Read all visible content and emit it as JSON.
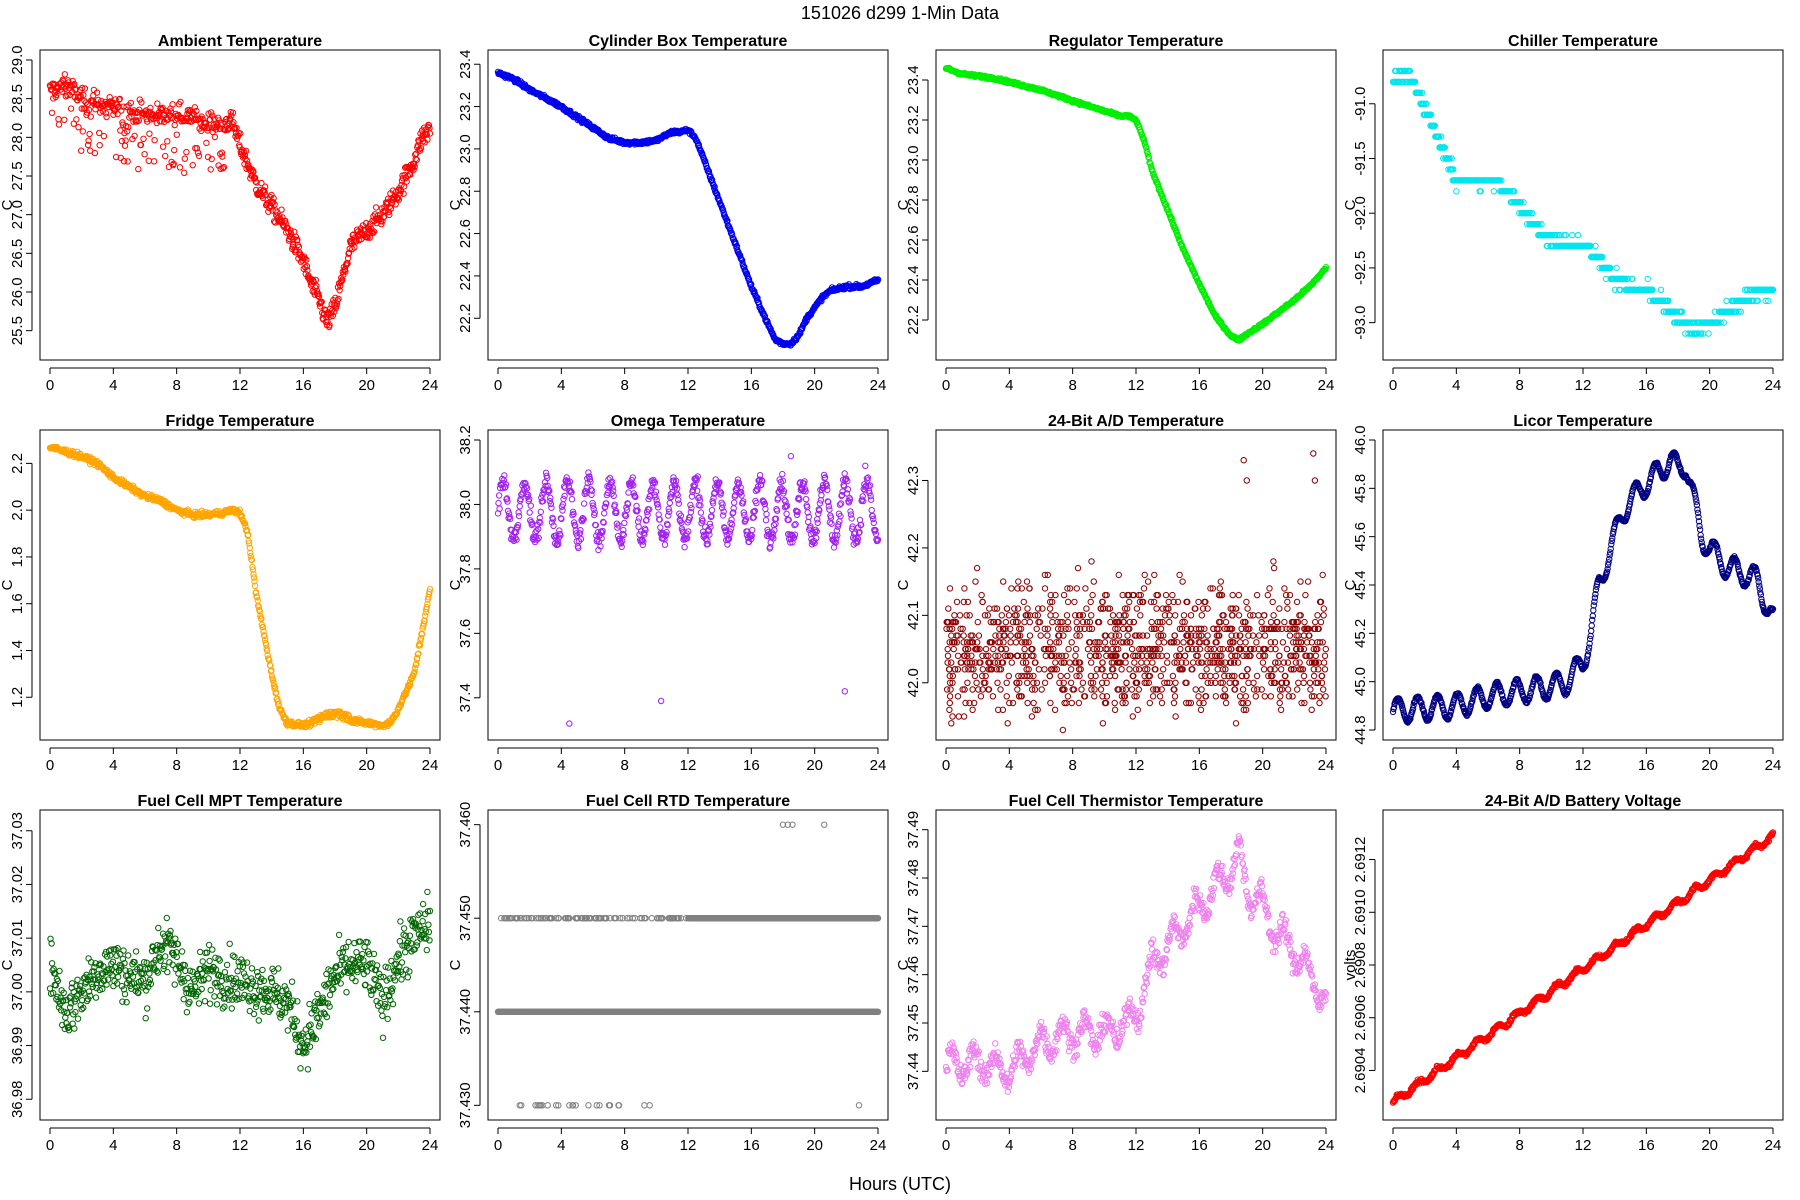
{
  "figure": {
    "title": "151026   d299   1-Min Data",
    "xlabel": "Hours (UTC)"
  },
  "chart_data": [
    {
      "type": "scatter",
      "title": "Ambient Temperature",
      "ylabel": "C",
      "color": "#ff0000",
      "xlim": [
        0,
        24
      ],
      "ylim": [
        25.25,
        29.0
      ],
      "xticks": [
        0,
        4,
        8,
        12,
        16,
        20,
        24
      ],
      "yticks": [
        "25.5",
        "26.0",
        "26.5",
        "27.0",
        "27.5",
        "28.0",
        "28.5",
        "29.0"
      ],
      "pattern": {
        "kind": "anchors",
        "x": [
          0,
          1,
          2,
          4,
          6,
          8,
          10,
          11.5,
          12,
          13,
          14,
          15,
          16,
          16.5,
          17,
          17.5,
          18,
          18.5,
          19,
          19.5,
          20,
          21,
          22,
          23,
          23.5,
          24
        ],
        "y": [
          28.6,
          28.7,
          28.5,
          28.4,
          28.3,
          28.3,
          28.2,
          28.2,
          27.9,
          27.4,
          27.1,
          26.8,
          26.4,
          26.1,
          25.9,
          25.6,
          25.8,
          26.2,
          26.6,
          26.7,
          26.8,
          27.0,
          27.3,
          27.7,
          28.0,
          28.1
        ],
        "noise": 0.12,
        "low_tail": 0.7,
        "low_tail_until": 11
      }
    },
    {
      "type": "scatter",
      "title": "Cylinder Box Temperature",
      "ylabel": "C",
      "color": "#0000ee",
      "xlim": [
        0,
        24
      ],
      "ylim": [
        22.05,
        23.42
      ],
      "xticks": [
        0,
        4,
        8,
        12,
        16,
        20,
        24
      ],
      "yticks": [
        "22.2",
        "22.4",
        "22.6",
        "22.8",
        "23.0",
        "23.2",
        "23.4"
      ],
      "pattern": {
        "kind": "anchors",
        "x": [
          0,
          1,
          2,
          4,
          6,
          7,
          8,
          9,
          10,
          11,
          11.5,
          12,
          12.5,
          13,
          14,
          15,
          16,
          17,
          17.5,
          18,
          18.5,
          19,
          19.5,
          20,
          20.5,
          21,
          22,
          23,
          24
        ],
        "y": [
          23.36,
          23.33,
          23.28,
          23.2,
          23.1,
          23.05,
          23.03,
          23.03,
          23.04,
          23.08,
          23.08,
          23.09,
          23.05,
          22.95,
          22.75,
          22.55,
          22.35,
          22.18,
          22.1,
          22.08,
          22.08,
          22.12,
          22.2,
          22.25,
          22.3,
          22.33,
          22.35,
          22.35,
          22.38
        ],
        "noise": 0.008
      }
    },
    {
      "type": "scatter",
      "title": "Regulator Temperature",
      "ylabel": "C",
      "color": "#00ee00",
      "xlim": [
        0,
        24
      ],
      "ylim": [
        22.05,
        23.5
      ],
      "xticks": [
        0,
        4,
        8,
        12,
        16,
        20,
        24
      ],
      "yticks": [
        "22.2",
        "22.4",
        "22.6",
        "22.8",
        "23.0",
        "23.2",
        "23.4"
      ],
      "pattern": {
        "kind": "anchors",
        "x": [
          0,
          1,
          3,
          6,
          9,
          11,
          11.5,
          12,
          12.5,
          13,
          14,
          15,
          16,
          17,
          18,
          18.5,
          19,
          20,
          21,
          22,
          23,
          24
        ],
        "y": [
          23.46,
          23.43,
          23.41,
          23.35,
          23.27,
          23.22,
          23.22,
          23.2,
          23.1,
          22.95,
          22.75,
          22.55,
          22.38,
          22.22,
          22.12,
          22.1,
          22.13,
          22.18,
          22.24,
          22.3,
          22.37,
          22.46
        ],
        "noise": 0.006
      }
    },
    {
      "type": "scatter",
      "title": "Chiller Temperature",
      "ylabel": "C",
      "color": "#00e5ee",
      "xlim": [
        0,
        24
      ],
      "ylim": [
        -93.25,
        -90.6
      ],
      "xticks": [
        0,
        4,
        8,
        12,
        16,
        20,
        24
      ],
      "yticks": [
        "-93.0",
        "-92.5",
        "-92.0",
        "-91.5",
        "-91.0"
      ],
      "pattern": {
        "kind": "anchors",
        "x": [
          0,
          1,
          2,
          3,
          4,
          5,
          6,
          7,
          8,
          9,
          10,
          12,
          13,
          14,
          16,
          17,
          18,
          19,
          20,
          21,
          22,
          23,
          24
        ],
        "y": [
          -90.78,
          -90.72,
          -91.05,
          -91.35,
          -91.72,
          -91.72,
          -91.7,
          -91.75,
          -91.92,
          -92.12,
          -92.25,
          -92.3,
          -92.4,
          -92.62,
          -92.7,
          -92.8,
          -92.95,
          -93.05,
          -93.0,
          -92.9,
          -92.8,
          -92.72,
          -92.7
        ],
        "noise": 0.05,
        "quantum": 0.1
      }
    },
    {
      "type": "scatter",
      "title": "Fridge Temperature",
      "ylabel": "C",
      "color": "#ffa500",
      "xlim": [
        0,
        24
      ],
      "ylim": [
        1.06,
        2.3
      ],
      "xticks": [
        0,
        4,
        8,
        12,
        16,
        20,
        24
      ],
      "yticks": [
        "1.2",
        "1.4",
        "1.6",
        "1.8",
        "2.0",
        "2.2"
      ],
      "pattern": {
        "kind": "anchors",
        "x": [
          0,
          1,
          2,
          3,
          4,
          5,
          6,
          7,
          8,
          9,
          10,
          11,
          11.5,
          12,
          12.5,
          13,
          14,
          14.5,
          15,
          16,
          17,
          18,
          19,
          20,
          21,
          21.5,
          22,
          23,
          23.5,
          24
        ],
        "y": [
          2.27,
          2.25,
          2.23,
          2.2,
          2.14,
          2.1,
          2.06,
          2.04,
          2.0,
          1.98,
          1.98,
          1.99,
          2.0,
          1.99,
          1.9,
          1.65,
          1.3,
          1.15,
          1.09,
          1.08,
          1.1,
          1.12,
          1.1,
          1.09,
          1.08,
          1.09,
          1.15,
          1.3,
          1.48,
          1.66
        ],
        "noise": 0.01,
        "bump": [
          16.5,
          19.5,
          0.03
        ]
      }
    },
    {
      "type": "scatter",
      "title": "Omega Temperature",
      "ylabel": "C",
      "color": "#a020f0",
      "xlim": [
        0,
        24
      ],
      "ylim": [
        37.3,
        38.2
      ],
      "xticks": [
        0,
        4,
        8,
        12,
        16,
        20,
        24
      ],
      "yticks": [
        "37.4",
        "37.6",
        "37.8",
        "38.0",
        "38.2"
      ],
      "pattern": {
        "kind": "osc",
        "base": 37.98,
        "amp": 0.09,
        "period": 1.35,
        "noise": 0.025,
        "outliers": [
          [
            4.5,
            37.32
          ],
          [
            10.3,
            37.39
          ],
          [
            21.9,
            37.42
          ],
          [
            18.5,
            38.15
          ],
          [
            23.2,
            38.12
          ]
        ]
      }
    },
    {
      "type": "scatter",
      "title": "24-Bit A/D Temperature",
      "ylabel": "C",
      "color": "#8b0000",
      "xlim": [
        0,
        24
      ],
      "ylim": [
        41.93,
        42.36
      ],
      "xticks": [
        0,
        4,
        8,
        12,
        16,
        20,
        24
      ],
      "yticks": [
        "42.0",
        "42.1",
        "42.2",
        "42.3"
      ],
      "pattern": {
        "kind": "quantized",
        "base": 42.05,
        "spread": 0.09,
        "quantum": 0.01,
        "count": 1100,
        "spikes": [
          [
            18.8,
            42.33
          ],
          [
            19.0,
            42.3
          ],
          [
            23.2,
            42.34
          ],
          [
            23.3,
            42.3
          ]
        ]
      }
    },
    {
      "type": "scatter",
      "title": "Licor Temperature",
      "ylabel": "C",
      "color": "#000080",
      "xlim": [
        0,
        24
      ],
      "ylim": [
        44.8,
        46.0
      ],
      "xticks": [
        0,
        4,
        8,
        12,
        16,
        20,
        24
      ],
      "yticks": [
        "44.8",
        "45.0",
        "45.2",
        "45.4",
        "45.6",
        "45.8",
        "46.0"
      ],
      "pattern": {
        "kind": "anchors",
        "x": [
          0,
          2,
          4,
          6,
          8,
          10,
          11,
          12,
          12.5,
          13,
          13.5,
          14,
          14.5,
          15,
          16,
          17,
          17.5,
          18,
          18.5,
          19,
          19.5,
          20,
          21,
          22,
          23,
          24
        ],
        "y": [
          44.88,
          44.89,
          44.9,
          44.94,
          44.96,
          44.98,
          45.0,
          45.08,
          45.2,
          45.4,
          45.5,
          45.6,
          45.7,
          45.75,
          45.82,
          45.88,
          45.92,
          45.88,
          45.9,
          45.75,
          45.6,
          45.55,
          45.48,
          45.45,
          45.42,
          45.25
        ],
        "noise": 0.004,
        "wave": [
          0.05,
          1.25
        ]
      }
    },
    {
      "type": "scatter",
      "title": "Fuel Cell MPT Temperature",
      "ylabel": "C",
      "color": "#006400",
      "xlim": [
        0,
        24
      ],
      "ylim": [
        36.978,
        37.032
      ],
      "xticks": [
        0,
        4,
        8,
        12,
        16,
        20,
        24
      ],
      "yticks": [
        "36.98",
        "36.99",
        "37.00",
        "37.01",
        "37.02",
        "37.03"
      ],
      "pattern": {
        "kind": "anchors",
        "x": [
          0,
          1,
          2,
          3,
          4,
          5,
          6,
          7,
          8,
          9,
          10,
          11,
          12,
          13,
          14,
          15,
          16,
          17,
          18,
          19,
          20,
          21,
          22,
          23,
          24
        ],
        "y": [
          37.005,
          36.996,
          37.0,
          37.004,
          37.005,
          37.003,
          37.002,
          37.009,
          37.006,
          37.0,
          37.004,
          37.003,
          37.002,
          37.001,
          37.0,
          36.998,
          36.99,
          36.996,
          37.003,
          37.005,
          37.005,
          36.998,
          37.006,
          37.01,
          37.013
        ],
        "noise": 0.0045
      }
    },
    {
      "type": "scatter",
      "title": "Fuel Cell RTD Temperature",
      "ylabel": "C",
      "color": "#808080",
      "xlim": [
        0,
        24
      ],
      "ylim": [
        37.4295,
        37.4605
      ],
      "xticks": [
        0,
        4,
        8,
        12,
        16,
        20,
        24
      ],
      "yticks": [
        "37.430",
        "37.440",
        "37.450",
        "37.460"
      ],
      "pattern": {
        "kind": "levels",
        "levels": [
          37.43,
          37.44,
          37.45,
          37.46
        ]
      }
    },
    {
      "type": "scatter",
      "title": "Fuel Cell Thermistor Temperature",
      "ylabel": "C",
      "color": "#ee82ee",
      "xlim": [
        0,
        24
      ],
      "ylim": [
        37.432,
        37.492
      ],
      "xticks": [
        0,
        4,
        8,
        12,
        16,
        20,
        24
      ],
      "yticks": [
        "37.44",
        "37.45",
        "37.46",
        "37.47",
        "37.48",
        "37.49"
      ],
      "pattern": {
        "kind": "anchors",
        "x": [
          0,
          2,
          4,
          6,
          8,
          10,
          11,
          12,
          13,
          14,
          15,
          16,
          17,
          18,
          18.5,
          19,
          20,
          21,
          22,
          23,
          24
        ],
        "y": [
          37.441,
          37.442,
          37.44,
          37.446,
          37.448,
          37.448,
          37.449,
          37.452,
          37.462,
          37.466,
          37.47,
          37.474,
          37.478,
          37.482,
          37.485,
          37.478,
          37.474,
          37.468,
          37.465,
          37.46,
          37.454
        ],
        "noise": 0.002,
        "wave": [
          0.003,
          1.4
        ]
      }
    },
    {
      "type": "scatter",
      "title": "24-Bit A/D Battery Voltage",
      "ylabel": "volts",
      "color": "#ff0000",
      "xlim": [
        0,
        24
      ],
      "ylim": [
        2.69025,
        2.69135
      ],
      "xticks": [
        0,
        4,
        8,
        12,
        16,
        20,
        24
      ],
      "yticks": [
        "2.6904",
        "2.6906",
        "2.6908",
        "2.6910",
        "2.6912"
      ],
      "pattern": {
        "kind": "anchors",
        "x": [
          0,
          24
        ],
        "y": [
          2.69028,
          2.69129
        ],
        "noise": 6e-06,
        "wave": [
          1.2e-05,
          1.25
        ]
      }
    }
  ]
}
